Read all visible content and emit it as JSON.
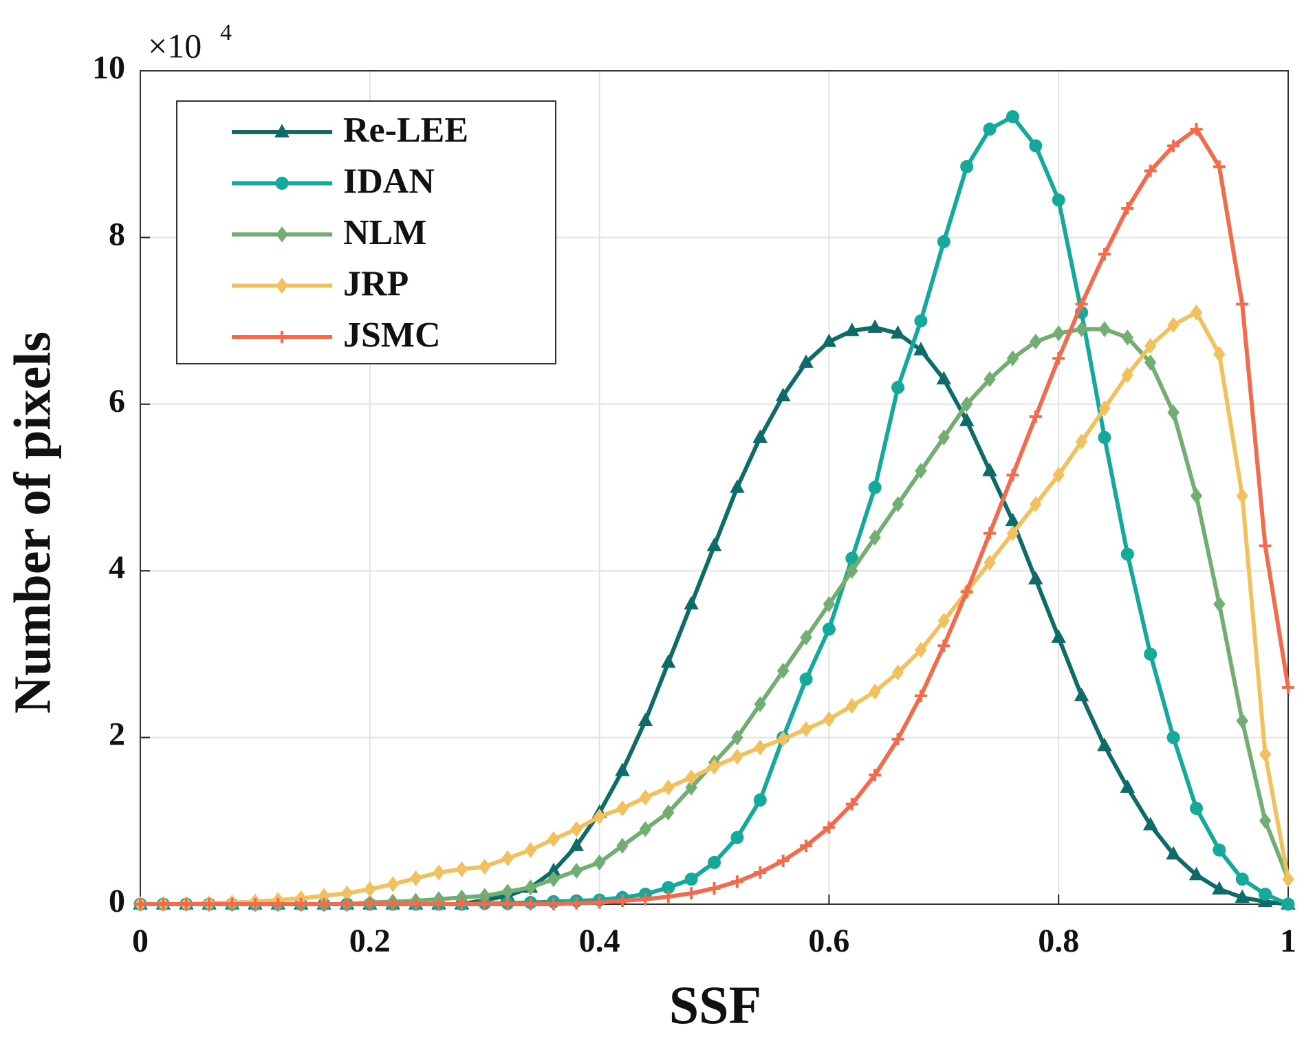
{
  "chart_data": {
    "type": "line",
    "xlabel": "SSF",
    "ylabel": "Number of pixels",
    "y_multiplier": {
      "base": "×10",
      "exponent": "4"
    },
    "x": [
      0,
      0.02,
      0.04,
      0.06,
      0.08,
      0.1,
      0.12,
      0.14,
      0.16,
      0.18,
      0.2,
      0.22,
      0.24,
      0.26,
      0.28,
      0.3,
      0.32,
      0.34,
      0.36,
      0.38,
      0.4,
      0.42,
      0.44,
      0.46,
      0.48,
      0.5,
      0.52,
      0.54,
      0.56,
      0.58,
      0.6,
      0.62,
      0.64,
      0.66,
      0.68,
      0.7,
      0.72,
      0.74,
      0.76,
      0.78,
      0.8,
      0.82,
      0.84,
      0.86,
      0.88,
      0.9,
      0.92,
      0.94,
      0.96,
      0.98,
      1
    ],
    "series": [
      {
        "name": "Re-LEE",
        "color": "#0f6b68",
        "marker": "triangle",
        "values": [
          0,
          0,
          0,
          0,
          0,
          0,
          0,
          0,
          0,
          0,
          0,
          0,
          0,
          0,
          0,
          0.05,
          0.1,
          0.2,
          0.4,
          0.7,
          1.1,
          1.6,
          2.2,
          2.9,
          3.6,
          4.3,
          5.0,
          5.6,
          6.1,
          6.5,
          6.75,
          6.88,
          6.92,
          6.85,
          6.65,
          6.3,
          5.8,
          5.2,
          4.6,
          3.9,
          3.2,
          2.5,
          1.9,
          1.4,
          0.95,
          0.6,
          0.35,
          0.18,
          0.08,
          0.03,
          0
        ]
      },
      {
        "name": "IDAN",
        "color": "#14a99a",
        "marker": "circle",
        "values": [
          0,
          0,
          0,
          0,
          0,
          0,
          0,
          0,
          0,
          0,
          0,
          0,
          0,
          0,
          0,
          0.01,
          0.01,
          0.02,
          0.03,
          0.04,
          0.05,
          0.08,
          0.12,
          0.2,
          0.3,
          0.5,
          0.8,
          1.25,
          2.0,
          2.7,
          3.3,
          4.15,
          5.0,
          6.2,
          7.0,
          7.95,
          8.85,
          9.3,
          9.45,
          9.1,
          8.45,
          7.1,
          5.6,
          4.2,
          3.0,
          2.0,
          1.15,
          0.65,
          0.3,
          0.12,
          0
        ]
      },
      {
        "name": "NLM",
        "color": "#72ae74",
        "marker": "diamond",
        "values": [
          0,
          0,
          0,
          0,
          0,
          0,
          0,
          0,
          0,
          0,
          0.02,
          0.03,
          0.04,
          0.06,
          0.08,
          0.1,
          0.15,
          0.2,
          0.3,
          0.4,
          0.5,
          0.7,
          0.9,
          1.1,
          1.4,
          1.7,
          2.0,
          2.4,
          2.8,
          3.2,
          3.6,
          4.0,
          4.4,
          4.8,
          5.2,
          5.6,
          6.0,
          6.3,
          6.55,
          6.75,
          6.85,
          6.9,
          6.9,
          6.8,
          6.5,
          5.9,
          4.9,
          3.6,
          2.2,
          1.0,
          0.3
        ]
      },
      {
        "name": "JRP",
        "color": "#f2c15f",
        "marker": "diamond",
        "values": [
          0,
          0,
          0,
          0.01,
          0.02,
          0.03,
          0.05,
          0.07,
          0.1,
          0.13,
          0.18,
          0.24,
          0.31,
          0.38,
          0.42,
          0.45,
          0.55,
          0.65,
          0.78,
          0.9,
          1.05,
          1.15,
          1.28,
          1.4,
          1.52,
          1.65,
          1.77,
          1.88,
          1.98,
          2.1,
          2.22,
          2.38,
          2.55,
          2.78,
          3.05,
          3.4,
          3.75,
          4.1,
          4.45,
          4.8,
          5.15,
          5.55,
          5.95,
          6.35,
          6.7,
          6.95,
          7.1,
          6.6,
          4.9,
          1.8,
          0.3
        ]
      },
      {
        "name": "JSMC",
        "color": "#f26b4c",
        "marker": "plus",
        "values": [
          0,
          0,
          0,
          0,
          0,
          0,
          0,
          0,
          0,
          0,
          0,
          0,
          0,
          0,
          0,
          0,
          0,
          0,
          0,
          0.01,
          0.02,
          0.04,
          0.06,
          0.09,
          0.13,
          0.19,
          0.27,
          0.38,
          0.52,
          0.7,
          0.92,
          1.2,
          1.55,
          1.98,
          2.5,
          3.1,
          3.75,
          4.45,
          5.15,
          5.85,
          6.55,
          7.2,
          7.8,
          8.35,
          8.8,
          9.1,
          9.3,
          8.85,
          7.2,
          4.3,
          2.6
        ]
      }
    ],
    "xlim": [
      0,
      1
    ],
    "xticks": [
      0,
      0.2,
      0.4,
      0.6,
      0.8,
      1
    ],
    "ylim": [
      0,
      10
    ],
    "yticks": [
      0,
      2,
      4,
      6,
      8,
      10
    ],
    "grid": true,
    "legend": "upper left"
  }
}
